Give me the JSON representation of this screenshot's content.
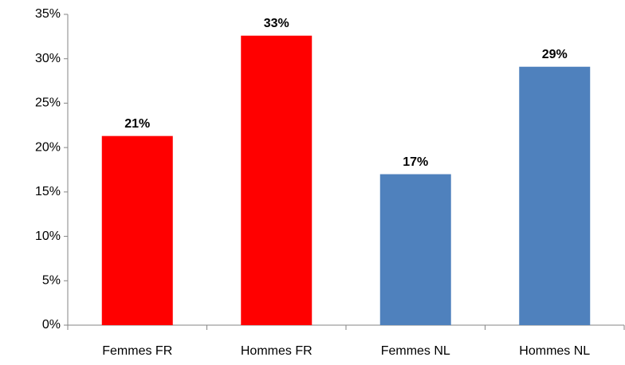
{
  "chart_data": {
    "type": "bar",
    "categories": [
      "Femmes FR",
      "Hommes FR",
      "Femmes NL",
      "Hommes NL"
    ],
    "values": [
      21.3,
      32.6,
      17.0,
      29.1
    ],
    "value_labels": [
      "21%",
      "33%",
      "17%",
      "29%"
    ],
    "colors": [
      "#ff0000",
      "#ff0000",
      "#4f81bd",
      "#4f81bd"
    ],
    "ylim": [
      0,
      35
    ],
    "yticks": [
      {
        "value": 0,
        "label": "0%"
      },
      {
        "value": 5,
        "label": "5%"
      },
      {
        "value": 10,
        "label": "10%"
      },
      {
        "value": 15,
        "label": "15%"
      },
      {
        "value": 20,
        "label": "20%"
      },
      {
        "value": 25,
        "label": "25%"
      },
      {
        "value": 30,
        "label": "30%"
      },
      {
        "value": 35,
        "label": "35%"
      }
    ],
    "grid": false
  }
}
